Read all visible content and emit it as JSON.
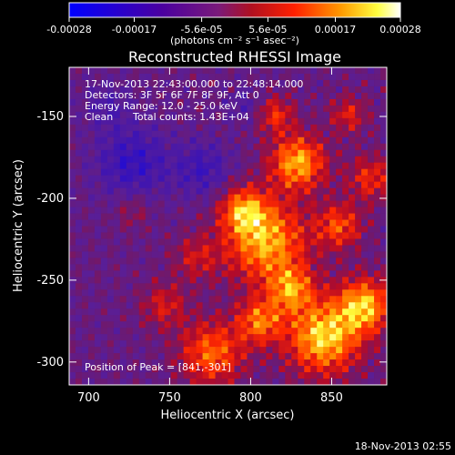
{
  "chart_data": {
    "type": "heatmap",
    "title": "Reconstructed RHESSI Image",
    "xlabel": "Heliocentric X (arcsec)",
    "ylabel": "Heliocentric Y (arcsec)",
    "xlim": [
      688,
      884
    ],
    "ylim": [
      -314,
      -120
    ],
    "x_ticks": [
      700,
      750,
      800,
      850
    ],
    "y_ticks": [
      -150,
      -200,
      -250,
      -300
    ],
    "colorbar": {
      "ticks": [
        -0.00028,
        -0.00017,
        -5.6e-05,
        5.6e-05,
        0.00017,
        0.00028
      ],
      "tick_labels": [
        "-0.00028",
        "-0.00017",
        "-5.6e-05",
        "5.6e-05",
        "0.00017",
        "0.00028"
      ],
      "units": "(photons cm⁻² s⁻¹ asec⁻²)",
      "range": [
        -0.00028,
        0.00028
      ]
    },
    "annotations": {
      "time_range": "17-Nov-2013 22:43:00.000 to 22:48:14.000",
      "detectors": "Detectors: 3F 5F 6F 7F 8F 9F, Att 0",
      "energy_range": "Energy Range: 12.0 - 25.0 keV",
      "clean_label": "Clean",
      "total_counts": "Total counts: 1.43E+04",
      "peak_position": "Position of Peak = [841,-301]"
    },
    "colormap": [
      "#0000ff",
      "#4b0082",
      "#8b1a8b",
      "#ff0000",
      "#ff8c00",
      "#ffff00",
      "#ffffff"
    ]
  },
  "footer_date": "18-Nov-2013 02:55"
}
